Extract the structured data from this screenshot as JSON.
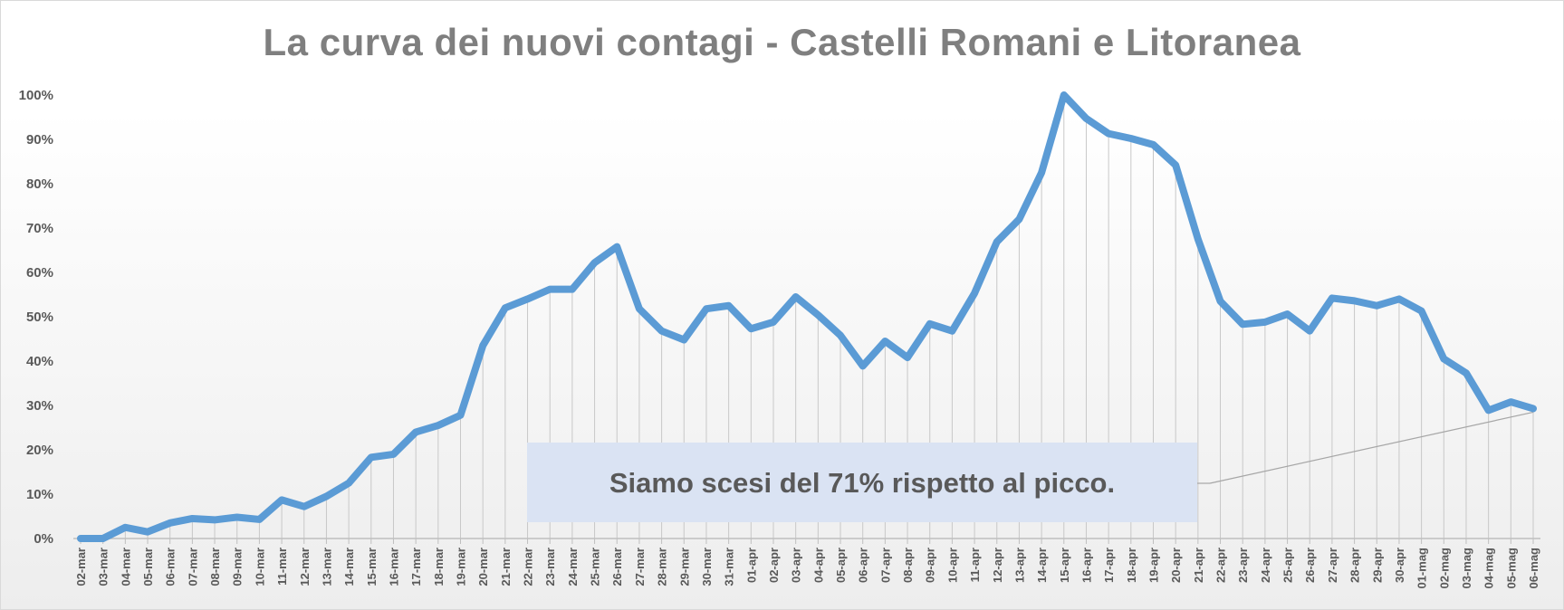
{
  "chart_data": {
    "type": "line",
    "title": "La curva dei nuovi contagi - Castelli Romani e Litoranea",
    "xlabel": "",
    "ylabel": "",
    "ylim": [
      0,
      100
    ],
    "y_ticks": [
      "0%",
      "10%",
      "20%",
      "30%",
      "40%",
      "50%",
      "60%",
      "70%",
      "80%",
      "90%",
      "100%"
    ],
    "grid": "vertical drop lines",
    "legend": "none",
    "line_color": "#5b9bd5",
    "categories": [
      "02-mar",
      "03-mar",
      "04-mar",
      "05-mar",
      "06-mar",
      "07-mar",
      "08-mar",
      "09-mar",
      "10-mar",
      "11-mar",
      "12-mar",
      "13-mar",
      "14-mar",
      "15-mar",
      "16-mar",
      "17-mar",
      "18-mar",
      "19-mar",
      "20-mar",
      "21-mar",
      "22-mar",
      "23-mar",
      "24-mar",
      "25-mar",
      "26-mar",
      "27-mar",
      "28-mar",
      "29-mar",
      "30-mar",
      "31-mar",
      "01-apr",
      "02-apr",
      "03-apr",
      "04-apr",
      "05-apr",
      "06-apr",
      "07-apr",
      "08-apr",
      "09-apr",
      "10-apr",
      "11-apr",
      "12-apr",
      "13-apr",
      "14-apr",
      "15-apr",
      "16-apr",
      "17-apr",
      "18-apr",
      "19-apr",
      "20-apr",
      "21-apr",
      "22-apr",
      "23-apr",
      "24-apr",
      "25-apr",
      "26-apr",
      "27-apr",
      "28-apr",
      "29-apr",
      "30-apr",
      "01-mag",
      "02-mag",
      "03-mag",
      "04-mag",
      "05-mag",
      "06-mag"
    ],
    "series": [
      {
        "values": [
          0,
          0,
          2.5,
          1.5,
          3.5,
          4.5,
          4.2,
          4.8,
          4.3,
          8.7,
          7.2,
          9.5,
          12.5,
          18.3,
          19,
          24,
          25.5,
          27.8,
          43.5,
          52,
          54,
          56.2,
          56.2,
          62.2,
          65.8,
          51.8,
          46.8,
          44.8,
          51.8,
          52.5,
          47.3,
          48.8,
          54.5,
          50.4,
          45.8,
          38.9,
          44.5,
          40.8,
          48.4,
          46.8,
          55.3,
          66.9,
          72,
          82.5,
          100,
          94.7,
          91.3,
          90.2,
          88.8,
          84.2,
          67.5,
          53.5,
          48.3,
          48.8,
          50.6,
          46.8,
          54.2,
          53.6,
          52.5,
          54,
          51.3,
          40.5,
          37.3,
          28.9,
          30.8,
          29.3
        ]
      }
    ],
    "annotation": {
      "text": "Siamo scesi del 71% rispetto al picco.",
      "box_color": "#dae3f3",
      "points_to": "06-mag"
    }
  }
}
